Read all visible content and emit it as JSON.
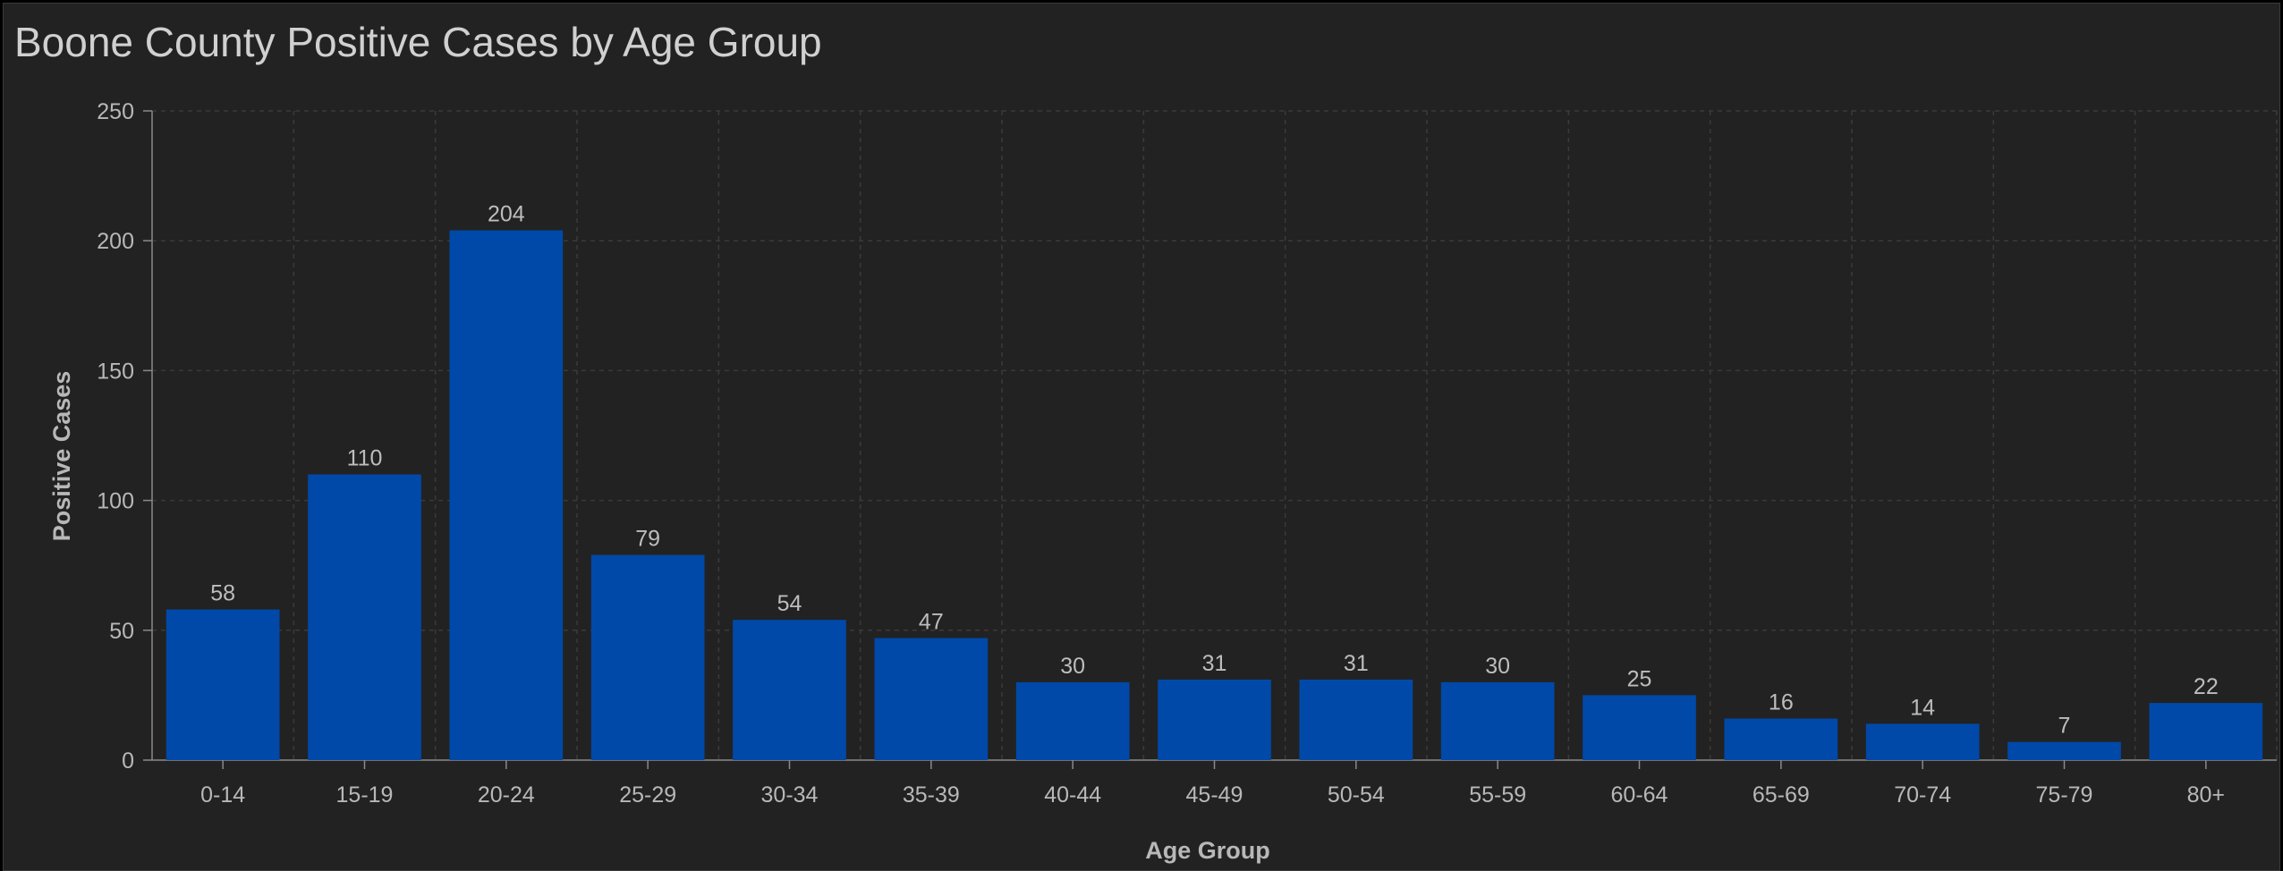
{
  "chart_data": {
    "type": "bar",
    "title": "Boone County Positive Cases by Age Group",
    "xlabel": "Age Group",
    "ylabel": "Positive Cases",
    "categories": [
      "0-14",
      "15-19",
      "20-24",
      "25-29",
      "30-34",
      "35-39",
      "40-44",
      "45-49",
      "50-54",
      "55-59",
      "60-64",
      "65-69",
      "70-74",
      "75-79",
      "80+"
    ],
    "values": [
      58,
      110,
      204,
      79,
      54,
      47,
      30,
      31,
      31,
      30,
      25,
      16,
      14,
      7,
      22
    ],
    "ylim": [
      0,
      250
    ],
    "yticks": [
      0,
      50,
      100,
      150,
      200,
      250
    ],
    "grid": true,
    "data_labels": true
  },
  "colors": {
    "bar": "#0049a8",
    "background": "#222222",
    "grid": "#3a3a3a",
    "axis": "#8a8a8a"
  }
}
